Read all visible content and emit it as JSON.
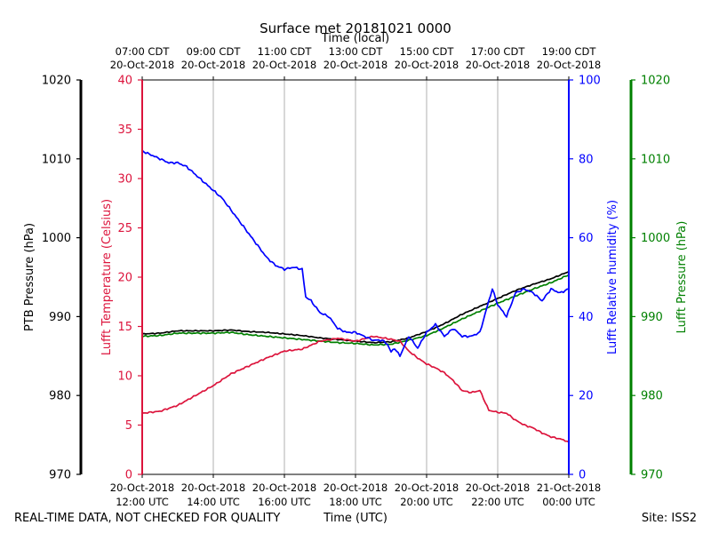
{
  "chart_data": {
    "type": "line",
    "title": "Surface met 20181021 0000",
    "top_axis_title": "Time (local)",
    "xlabel": "Time (UTC)",
    "footer_left": "REAL-TIME DATA, NOT CHECKED FOR QUALITY",
    "footer_right": "Site: ISS2",
    "x_range_hours_utc": [
      12,
      24
    ],
    "bottom_ticks": [
      {
        "h": 12,
        "line1": "20-Oct-2018",
        "line2": "12:00 UTC"
      },
      {
        "h": 14,
        "line1": "20-Oct-2018",
        "line2": "14:00 UTC"
      },
      {
        "h": 16,
        "line1": "20-Oct-2018",
        "line2": "16:00 UTC"
      },
      {
        "h": 18,
        "line1": "20-Oct-2018",
        "line2": "18:00 UTC"
      },
      {
        "h": 20,
        "line1": "20-Oct-2018",
        "line2": "20:00 UTC"
      },
      {
        "h": 22,
        "line1": "20-Oct-2018",
        "line2": "22:00 UTC"
      },
      {
        "h": 24,
        "line1": "21-Oct-2018",
        "line2": "00:00 UTC"
      }
    ],
    "top_ticks": [
      {
        "h": 12,
        "line1": "07:00 CDT",
        "line2": "20-Oct-2018"
      },
      {
        "h": 14,
        "line1": "09:00 CDT",
        "line2": "20-Oct-2018"
      },
      {
        "h": 16,
        "line1": "11:00 CDT",
        "line2": "20-Oct-2018"
      },
      {
        "h": 18,
        "line1": "13:00 CDT",
        "line2": "20-Oct-2018"
      },
      {
        "h": 20,
        "line1": "15:00 CDT",
        "line2": "20-Oct-2018"
      },
      {
        "h": 22,
        "line1": "17:00 CDT",
        "line2": "20-Oct-2018"
      },
      {
        "h": 24,
        "line1": "19:00 CDT",
        "line2": "20-Oct-2018"
      }
    ],
    "axes": {
      "ptb_pressure": {
        "label": "PTB Pressure (hPa)",
        "range": [
          970,
          1020
        ],
        "ticks": [
          970,
          980,
          990,
          1000,
          1010,
          1020
        ],
        "color": "#000000"
      },
      "temperature": {
        "label": "Lufft Temperature (Celsius)",
        "range": [
          0,
          40
        ],
        "ticks": [
          0,
          5,
          10,
          15,
          20,
          25,
          30,
          35,
          40
        ],
        "color": "#dc143c"
      },
      "humidity": {
        "label": "Lufft Relative humidity (%)",
        "range": [
          0,
          100
        ],
        "ticks": [
          0,
          20,
          40,
          60,
          80,
          100
        ],
        "color": "#0000ff"
      },
      "lufft_pressure": {
        "label": "Lufft Pressure (hPa)",
        "range": [
          970,
          1020
        ],
        "ticks": [
          970,
          980,
          990,
          1000,
          1010,
          1020
        ],
        "color": "#008000"
      }
    },
    "series": [
      {
        "name": "PTB Pressure",
        "axis": "ptb_pressure",
        "color": "#000000",
        "x": [
          12.0,
          12.5,
          13.0,
          13.5,
          14.0,
          14.5,
          15.0,
          15.5,
          16.0,
          16.5,
          17.0,
          17.5,
          18.0,
          18.5,
          19.0,
          19.5,
          20.0,
          20.5,
          21.0,
          21.5,
          22.0,
          22.5,
          23.0,
          23.5,
          24.0
        ],
        "values": [
          987.8,
          987.9,
          988.2,
          988.2,
          988.2,
          988.3,
          988.1,
          988.0,
          987.8,
          987.6,
          987.3,
          987.1,
          986.9,
          986.7,
          986.8,
          987.3,
          988.1,
          989.1,
          990.3,
          991.3,
          992.3,
          993.3,
          994.1,
          994.8,
          995.7
        ]
      },
      {
        "name": "Lufft Pressure",
        "axis": "lufft_pressure",
        "color": "#008000",
        "x": [
          12.0,
          12.5,
          13.0,
          13.5,
          14.0,
          14.5,
          15.0,
          15.5,
          16.0,
          16.5,
          17.0,
          17.5,
          18.0,
          18.5,
          19.0,
          19.5,
          20.0,
          20.5,
          21.0,
          21.5,
          22.0,
          22.5,
          23.0,
          23.5,
          24.0
        ],
        "values": [
          987.5,
          987.6,
          987.9,
          987.9,
          987.9,
          988.0,
          987.7,
          987.5,
          987.3,
          987.1,
          986.9,
          986.7,
          986.6,
          986.4,
          986.5,
          987.0,
          987.6,
          988.6,
          989.7,
          990.7,
          991.7,
          992.6,
          993.5,
          994.3,
          995.3
        ]
      },
      {
        "name": "Lufft Temperature",
        "axis": "temperature",
        "color": "#dc143c",
        "x": [
          12.0,
          12.5,
          13.0,
          13.5,
          14.0,
          14.5,
          15.0,
          15.5,
          16.0,
          16.5,
          17.0,
          17.5,
          18.0,
          18.5,
          19.0,
          19.25,
          19.5,
          19.75,
          20.0,
          20.25,
          20.5,
          20.75,
          21.0,
          21.25,
          21.5,
          21.75,
          22.0,
          22.25,
          22.5,
          22.75,
          23.0,
          23.25,
          23.5,
          23.75,
          24.0
        ],
        "values": [
          6.2,
          6.4,
          7.0,
          8.0,
          9.0,
          10.2,
          11.0,
          11.8,
          12.5,
          12.7,
          13.5,
          13.8,
          13.5,
          14.0,
          13.7,
          13.5,
          12.5,
          11.8,
          11.2,
          10.8,
          10.3,
          9.5,
          8.5,
          8.3,
          8.5,
          6.5,
          6.3,
          6.2,
          5.5,
          5.0,
          4.7,
          4.2,
          3.8,
          3.6,
          3.3
        ]
      },
      {
        "name": "Lufft Relative humidity",
        "axis": "humidity",
        "color": "#0000ff",
        "x": [
          12.0,
          12.25,
          12.5,
          12.75,
          13.0,
          13.25,
          13.5,
          13.75,
          14.0,
          14.25,
          14.5,
          14.75,
          15.0,
          15.25,
          15.5,
          15.75,
          16.0,
          16.25,
          16.5,
          16.6,
          16.75,
          17.0,
          17.25,
          17.5,
          17.75,
          18.0,
          18.25,
          18.5,
          18.75,
          18.9,
          19.0,
          19.1,
          19.25,
          19.5,
          19.75,
          20.0,
          20.25,
          20.5,
          20.75,
          21.0,
          21.25,
          21.5,
          21.75,
          21.85,
          22.0,
          22.25,
          22.5,
          22.75,
          23.0,
          23.25,
          23.5,
          23.75,
          24.0
        ],
        "values": [
          82,
          81,
          80,
          79,
          79,
          78,
          76,
          74,
          72,
          70,
          67,
          64,
          61,
          58,
          55,
          53,
          52,
          52.5,
          52,
          45,
          44,
          41,
          40,
          37,
          36,
          36,
          35,
          34,
          34,
          33,
          31,
          32,
          30,
          35,
          32,
          36,
          38,
          35,
          37,
          35,
          35,
          36,
          44,
          47,
          43,
          40,
          46,
          47,
          46,
          44,
          47,
          46,
          47
        ]
      }
    ]
  }
}
